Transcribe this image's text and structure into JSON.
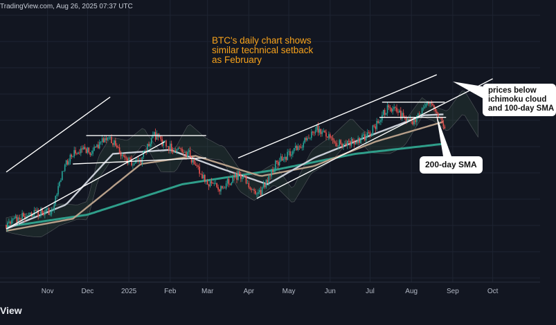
{
  "header": {
    "text": "TradingView.com, Aug 26, 2025 07:37 UTC"
  },
  "footer": {
    "brand": "View"
  },
  "colors": {
    "background": "#121621",
    "bull": "#26a69a",
    "bear": "#ef5350",
    "sma50": "#c8cdd6",
    "sma100": "#b8a08a",
    "sma200": "#2f9e8a",
    "annotation": "#f7a21b",
    "trendline": "#ffffff"
  },
  "chart_data": {
    "type": "candlestick",
    "title_lines": [
      "BTC's daily chart shows",
      "similar technical setback",
      "as February"
    ],
    "x_tick_labels": [
      "Nov",
      "Dec",
      "2025",
      "Feb",
      "Mar",
      "Apr",
      "May",
      "Jun",
      "Jul",
      "Aug",
      "Sep",
      "Oct"
    ],
    "grid": true,
    "annotations": {
      "cloud_callout": [
        "prices below",
        "ichimoku cloud",
        "and 100-day SMA"
      ],
      "sma_callout": "200-day SMA"
    },
    "price_path": [
      {
        "date": "2024-10-01",
        "value": 62000
      },
      {
        "date": "2024-10-15",
        "value": 67000
      },
      {
        "date": "2024-11-05",
        "value": 69000
      },
      {
        "date": "2024-11-13",
        "value": 90000
      },
      {
        "date": "2024-11-22",
        "value": 99000
      },
      {
        "date": "2024-12-05",
        "value": 98000
      },
      {
        "date": "2024-12-17",
        "value": 106000
      },
      {
        "date": "2024-12-30",
        "value": 93000
      },
      {
        "date": "2025-01-10",
        "value": 94000
      },
      {
        "date": "2025-01-20",
        "value": 106000
      },
      {
        "date": "2025-02-01",
        "value": 100000
      },
      {
        "date": "2025-02-15",
        "value": 97000
      },
      {
        "date": "2025-02-27",
        "value": 84000
      },
      {
        "date": "2025-03-10",
        "value": 80000
      },
      {
        "date": "2025-03-25",
        "value": 87000
      },
      {
        "date": "2025-04-08",
        "value": 76000
      },
      {
        "date": "2025-04-22",
        "value": 93000
      },
      {
        "date": "2025-05-08",
        "value": 100000
      },
      {
        "date": "2025-05-22",
        "value": 110000
      },
      {
        "date": "2025-06-05",
        "value": 102000
      },
      {
        "date": "2025-06-20",
        "value": 103000
      },
      {
        "date": "2025-07-01",
        "value": 107000
      },
      {
        "date": "2025-07-14",
        "value": 120000
      },
      {
        "date": "2025-08-02",
        "value": 113000
      },
      {
        "date": "2025-08-14",
        "value": 123000
      },
      {
        "date": "2025-08-26",
        "value": 110000
      }
    ],
    "sma50": [
      {
        "date": "2024-10-01",
        "value": 60000
      },
      {
        "date": "2024-11-15",
        "value": 72000
      },
      {
        "date": "2024-12-20",
        "value": 97000
      },
      {
        "date": "2025-02-01",
        "value": 99000
      },
      {
        "date": "2025-03-10",
        "value": 90000
      },
      {
        "date": "2025-04-15",
        "value": 82000
      },
      {
        "date": "2025-05-20",
        "value": 95000
      },
      {
        "date": "2025-07-01",
        "value": 106000
      },
      {
        "date": "2025-08-10",
        "value": 116000
      },
      {
        "date": "2025-08-26",
        "value": 116500
      }
    ],
    "sma100": [
      {
        "date": "2024-10-01",
        "value": 59000
      },
      {
        "date": "2024-11-20",
        "value": 65000
      },
      {
        "date": "2025-01-10",
        "value": 92000
      },
      {
        "date": "2025-02-20",
        "value": 96000
      },
      {
        "date": "2025-04-10",
        "value": 86000
      },
      {
        "date": "2025-05-20",
        "value": 91000
      },
      {
        "date": "2025-07-05",
        "value": 103000
      },
      {
        "date": "2025-08-26",
        "value": 113000
      }
    ],
    "sma200": [
      {
        "date": "2024-10-01",
        "value": 61000
      },
      {
        "date": "2024-12-01",
        "value": 67000
      },
      {
        "date": "2025-02-10",
        "value": 82000
      },
      {
        "date": "2025-04-20",
        "value": 89000
      },
      {
        "date": "2025-06-20",
        "value": 97000
      },
      {
        "date": "2025-08-26",
        "value": 102000
      }
    ],
    "trendlines": [
      {
        "from": {
          "date": "2024-10-01",
          "value": 88000
        },
        "to": {
          "date": "2024-12-18",
          "value": 125000
        }
      },
      {
        "from": {
          "date": "2024-10-01",
          "value": 60000
        },
        "to": {
          "date": "2025-01-28",
          "value": 103000
        }
      },
      {
        "from": {
          "date": "2024-11-30",
          "value": 106000
        },
        "to": {
          "date": "2025-02-28",
          "value": 106000
        }
      },
      {
        "from": {
          "date": "2024-11-20",
          "value": 92000
        },
        "to": {
          "date": "2025-02-28",
          "value": 95000
        }
      },
      {
        "from": {
          "date": "2025-03-24",
          "value": 95000
        },
        "to": {
          "date": "2025-08-20",
          "value": 136000
        }
      },
      {
        "from": {
          "date": "2025-04-07",
          "value": 75000
        },
        "to": {
          "date": "2025-10-01",
          "value": 134000
        }
      },
      {
        "from": {
          "date": "2025-07-10",
          "value": 122500
        },
        "to": {
          "date": "2025-08-26",
          "value": 122500
        }
      },
      {
        "from": {
          "date": "2025-07-08",
          "value": 115000
        },
        "to": {
          "date": "2025-08-27",
          "value": 115000
        }
      }
    ]
  }
}
